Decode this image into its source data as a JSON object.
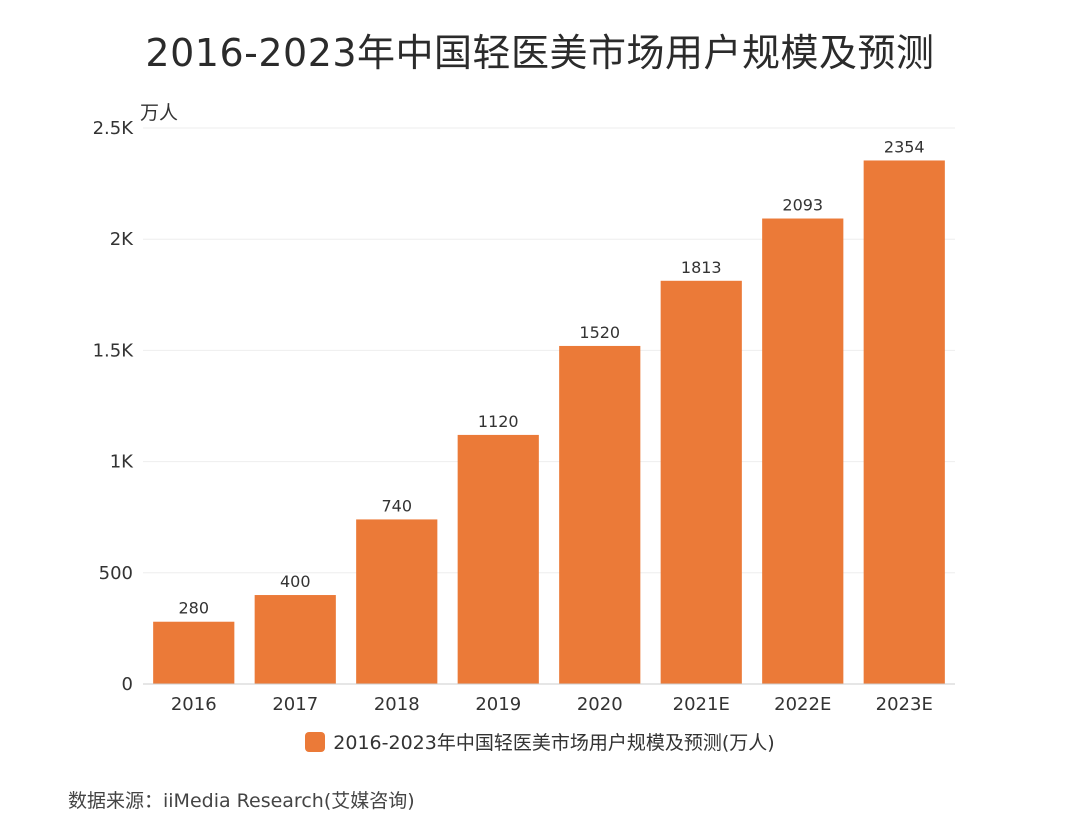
{
  "title": "2016-2023年中国轻医美市场用户规模及预测",
  "y_unit_label": "万人",
  "colors": {
    "bar": "#eb7a38",
    "grid": "#eeeeee",
    "axis": "#cccccc",
    "tick_text": "#333333",
    "value_text": "#333333"
  },
  "chart_data": {
    "type": "bar",
    "title": "2016-2023年中国轻医美市场用户规模及预测",
    "ylabel": "万人",
    "xlabel": "",
    "categories": [
      "2016",
      "2017",
      "2018",
      "2019",
      "2020",
      "2021E",
      "2022E",
      "2023E"
    ],
    "series": [
      {
        "name": "2016-2023年中国轻医美市场用户规模及预测(万人)",
        "values": [
          280,
          400,
          740,
          1120,
          1520,
          1813,
          2093,
          2354
        ]
      }
    ],
    "ylim": [
      0,
      2500
    ],
    "y_ticks": [
      {
        "value": 0,
        "label": "0"
      },
      {
        "value": 500,
        "label": "500"
      },
      {
        "value": 1000,
        "label": "1K"
      },
      {
        "value": 1500,
        "label": "1.5K"
      },
      {
        "value": 2000,
        "label": "2K"
      },
      {
        "value": 2500,
        "label": "2.5K"
      }
    ],
    "grid": true,
    "legend_position": "bottom-center"
  },
  "legend": {
    "label": "2016-2023年中国轻医美市场用户规模及预测(万人)"
  },
  "source": "数据来源：iiMedia Research(艾媒咨询)"
}
